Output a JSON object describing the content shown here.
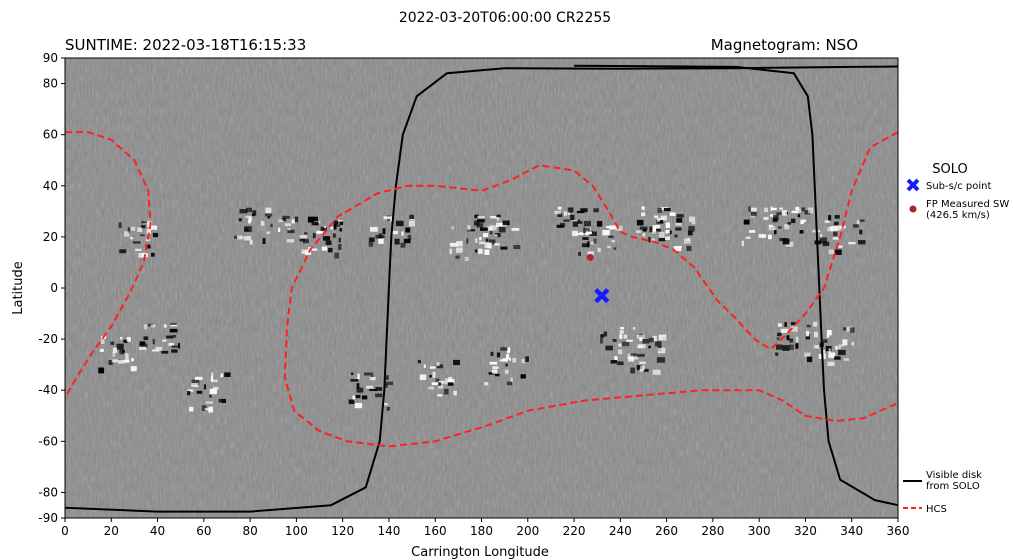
{
  "chart_data": {
    "type": "map",
    "title": "2022-03-20T06:00:00 CR2255",
    "subtitle_left": "SUNTIME: 2022-03-18T16:15:33",
    "subtitle_right": "Magnetogram: NSO",
    "xlabel": "Carrington Longitude",
    "ylabel": "Latitude",
    "xlim": [
      0,
      360
    ],
    "ylim": [
      -90,
      90
    ],
    "xticks": [
      0,
      20,
      40,
      60,
      80,
      100,
      120,
      140,
      160,
      180,
      200,
      220,
      240,
      260,
      280,
      300,
      320,
      340,
      360
    ],
    "yticks": [
      -90,
      -80,
      -60,
      -40,
      -20,
      0,
      20,
      40,
      60,
      80,
      90
    ],
    "legend_title": "SOLO",
    "legend_placement": "right",
    "legend_items": [
      {
        "label": "Sub-s/c point",
        "color": "#1a1aff",
        "marker": "x"
      },
      {
        "label": "FP Measured SW",
        "label2": "(426.5 km/s)",
        "color": "#b22222",
        "marker": "o"
      }
    ],
    "lower_legend": [
      {
        "label": "Visible disk",
        "label2": "from SOLO",
        "color": "#000000",
        "style": "solid"
      },
      {
        "label": "HCS",
        "color": "#ff2020",
        "style": "dashed"
      }
    ],
    "sub_sc_point": {
      "lon": 232,
      "lat": -3
    },
    "fp_point": {
      "lon": 227,
      "lat": 12
    },
    "visible_disk_boundary": [
      [
        400,
        87
      ],
      [
        340,
        86.5
      ],
      [
        290,
        86
      ],
      [
        240,
        85.8
      ],
      [
        190,
        86
      ],
      [
        165,
        84
      ],
      [
        152,
        75
      ],
      [
        146,
        60
      ],
      [
        143,
        40
      ],
      [
        141,
        20
      ],
      [
        140,
        0
      ],
      [
        139,
        -20
      ],
      [
        138,
        -40
      ],
      [
        136,
        -60
      ],
      [
        130,
        -78
      ],
      [
        115,
        -85
      ],
      [
        80,
        -87.5
      ],
      [
        40,
        -87.5
      ],
      [
        0,
        -86
      ],
      [
        -40,
        -87
      ]
    ],
    "visible_disk_boundary_right": [
      [
        220,
        87
      ],
      [
        290,
        86.5
      ],
      [
        315,
        84
      ],
      [
        321,
        75
      ],
      [
        323,
        60
      ],
      [
        324,
        40
      ],
      [
        325,
        20
      ],
      [
        326,
        0
      ],
      [
        327,
        -20
      ],
      [
        328,
        -40
      ],
      [
        330,
        -60
      ],
      [
        335,
        -75
      ],
      [
        350,
        -83
      ],
      [
        360,
        -85
      ]
    ],
    "hcs_segments": [
      [
        [
          0,
          61
        ],
        [
          10,
          61
        ],
        [
          20,
          58
        ],
        [
          30,
          50
        ],
        [
          36,
          38
        ],
        [
          37,
          25
        ],
        [
          34,
          10
        ],
        [
          28,
          -2
        ],
        [
          20,
          -15
        ],
        [
          12,
          -25
        ],
        [
          5,
          -35
        ],
        [
          0,
          -43
        ]
      ],
      [
        [
          360,
          61
        ],
        [
          348,
          55
        ],
        [
          340,
          38
        ],
        [
          335,
          20
        ],
        [
          328,
          0
        ],
        [
          320,
          -10
        ],
        [
          312,
          -18
        ],
        [
          305,
          -24
        ],
        [
          298,
          -20
        ],
        [
          290,
          -12
        ],
        [
          282,
          -5
        ],
        [
          272,
          8
        ],
        [
          263,
          15
        ],
        [
          255,
          18
        ],
        [
          245,
          20
        ],
        [
          240,
          22
        ],
        [
          235,
          30
        ],
        [
          228,
          40
        ],
        [
          220,
          46
        ],
        [
          205,
          48
        ],
        [
          192,
          42
        ],
        [
          180,
          38
        ],
        [
          170,
          39
        ],
        [
          160,
          40
        ],
        [
          148,
          40
        ],
        [
          135,
          37
        ],
        [
          118,
          28
        ],
        [
          106,
          15
        ],
        [
          98,
          0
        ],
        [
          96,
          -15
        ],
        [
          95,
          -35
        ],
        [
          99,
          -48
        ],
        [
          110,
          -56
        ],
        [
          122,
          -60
        ],
        [
          140,
          -62
        ],
        [
          160,
          -60
        ],
        [
          182,
          -54
        ],
        [
          200,
          -48
        ],
        [
          225,
          -44
        ],
        [
          250,
          -42
        ],
        [
          275,
          -40
        ],
        [
          290,
          -40
        ],
        [
          300,
          -40
        ],
        [
          310,
          -44
        ],
        [
          320,
          -50
        ],
        [
          333,
          -52
        ],
        [
          345,
          -51
        ],
        [
          355,
          -47
        ],
        [
          360,
          -45
        ]
      ]
    ]
  }
}
